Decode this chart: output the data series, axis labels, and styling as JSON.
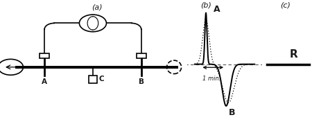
{
  "bg_color": "#ffffff",
  "panel_a_label": "(a)",
  "panel_b_label": "(b)",
  "panel_c_label": "(c)",
  "label_A_b": "A",
  "label_B_b": "B",
  "label_R": "R",
  "label_1min": "1 min.",
  "label_A_circuit": "A",
  "label_B_circuit": "B",
  "label_C_circuit": "C",
  "text_color": "#1a1a1a",
  "line_color": "#000000",
  "dashed_color": "#555555"
}
